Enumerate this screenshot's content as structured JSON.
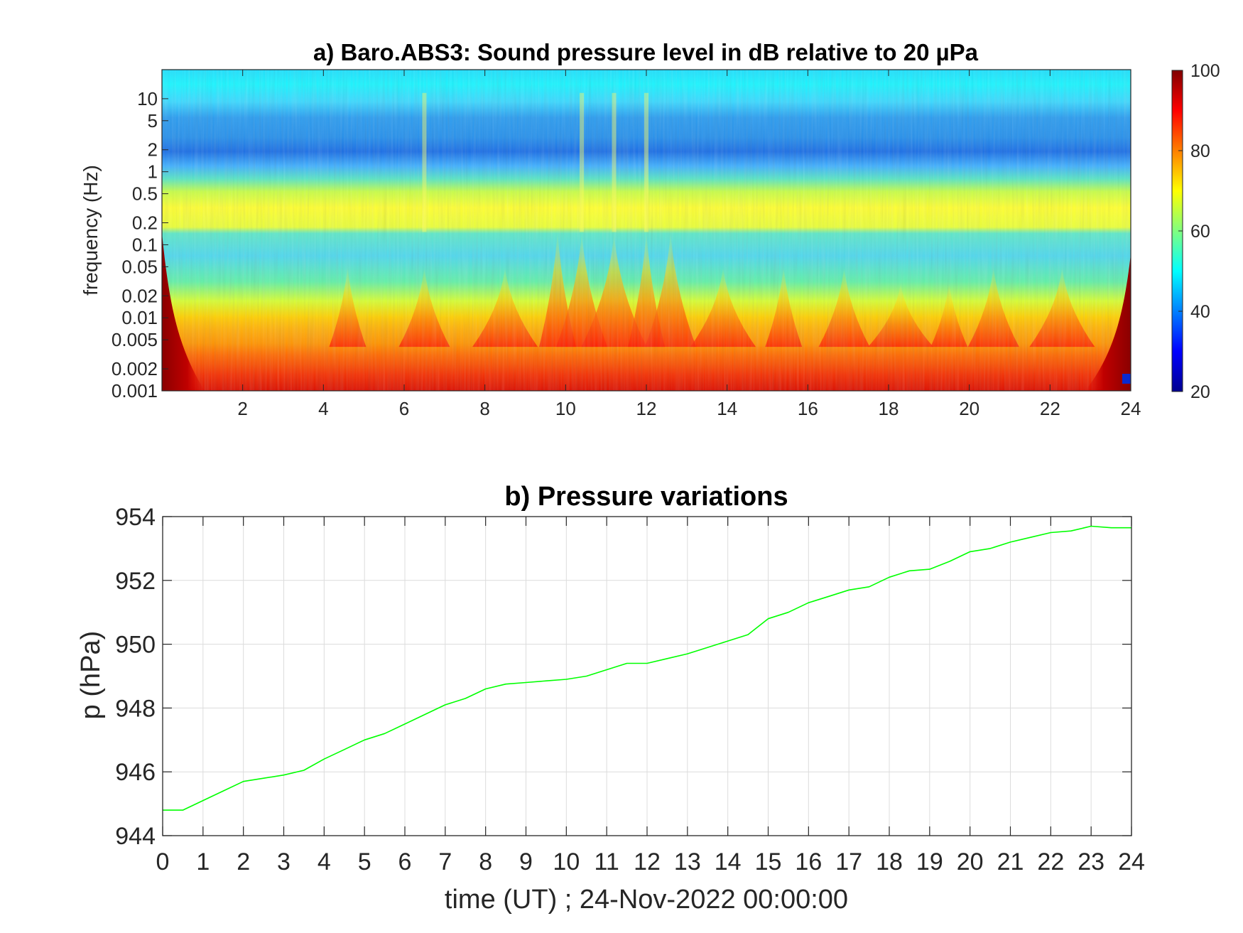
{
  "chart_data": [
    {
      "type": "heatmap",
      "title": "a) Baro.ABS3: Sound pressure level in dB relative to 20 µPa",
      "xlabel": "",
      "ylabel": "frequency (Hz)",
      "xlim": [
        0,
        24
      ],
      "ylim": [
        0.001,
        25
      ],
      "yscale": "log",
      "x_ticks": [
        2,
        4,
        6,
        8,
        10,
        12,
        14,
        16,
        18,
        20,
        22,
        24
      ],
      "x_tick_labels": [
        "2",
        "4",
        "6",
        "8",
        "10",
        "12",
        "14",
        "16",
        "18",
        "20",
        "22",
        "24"
      ],
      "y_ticks": [
        0.001,
        0.002,
        0.005,
        0.01,
        0.02,
        0.05,
        0.1,
        0.2,
        0.5,
        1,
        2,
        5,
        10
      ],
      "y_tick_labels": [
        "0.001",
        "0.002",
        "0.005",
        "0.01",
        "0.02",
        "0.05",
        "0.1",
        "0.2",
        "0.5",
        "1",
        "2",
        "5",
        "10"
      ],
      "colormap": "jet",
      "colorbar": {
        "min": 20,
        "max": 100,
        "ticks": [
          20,
          40,
          60,
          80,
          100
        ],
        "tick_labels": [
          "20",
          "40",
          "60",
          "80",
          "100"
        ]
      },
      "level_profile_db": {
        "frequency_hz": [
          0.001,
          0.002,
          0.005,
          0.01,
          0.02,
          0.05,
          0.1,
          0.15,
          0.2,
          0.5,
          1,
          2,
          5,
          10,
          25
        ],
        "level_db": [
          88,
          85,
          80,
          74,
          68,
          58,
          55,
          66,
          65,
          58,
          50,
          44,
          43,
          50,
          55
        ]
      },
      "broadband_events_hours": [
        4.6,
        6.5,
        8.5,
        9.8,
        10.4,
        11.2,
        12.0,
        12.6,
        13.9,
        15.4,
        16.9,
        18.3,
        19.5,
        20.6,
        22.3
      ],
      "grid": false
    },
    {
      "type": "line",
      "title": "b) Pressure variations",
      "xlabel": "time (UT) ; 24-Nov-2022 00:00:00",
      "ylabel": "p (hPa)",
      "xlim": [
        0,
        24
      ],
      "ylim": [
        944,
        954
      ],
      "x_ticks": [
        0,
        1,
        2,
        3,
        4,
        5,
        6,
        7,
        8,
        9,
        10,
        11,
        12,
        13,
        14,
        15,
        16,
        17,
        18,
        19,
        20,
        21,
        22,
        23,
        24
      ],
      "x_tick_labels": [
        "0",
        "1",
        "2",
        "3",
        "4",
        "5",
        "6",
        "7",
        "8",
        "9",
        "10",
        "11",
        "12",
        "13",
        "14",
        "15",
        "16",
        "17",
        "18",
        "19",
        "20",
        "21",
        "22",
        "23",
        "24"
      ],
      "y_ticks": [
        944,
        946,
        948,
        950,
        952,
        954
      ],
      "y_tick_labels": [
        "944",
        "946",
        "948",
        "950",
        "952",
        "954"
      ],
      "grid": true,
      "line_color": "#00ff00",
      "series": [
        {
          "x": [
            0,
            0.5,
            1,
            1.5,
            2,
            2.5,
            3,
            3.5,
            4,
            4.5,
            5,
            5.5,
            6,
            6.5,
            7,
            7.5,
            8,
            8.5,
            9,
            9.5,
            10,
            10.5,
            11,
            11.5,
            12,
            12.5,
            13,
            13.5,
            14,
            14.5,
            15,
            15.5,
            16,
            16.5,
            17,
            17.5,
            18,
            18.5,
            19,
            19.5,
            20,
            20.5,
            21,
            21.5,
            22,
            22.5,
            23,
            23.5,
            24
          ],
          "y": [
            944.8,
            944.8,
            945.1,
            945.4,
            945.7,
            945.8,
            945.9,
            946.05,
            946.4,
            946.7,
            947.0,
            947.2,
            947.5,
            947.8,
            948.1,
            948.3,
            948.6,
            948.75,
            948.8,
            948.85,
            948.9,
            949.0,
            949.2,
            949.4,
            949.4,
            949.55,
            949.7,
            949.9,
            950.1,
            950.3,
            950.8,
            951.0,
            951.3,
            951.5,
            951.7,
            951.8,
            952.1,
            952.3,
            952.35,
            952.6,
            952.9,
            953.0,
            953.2,
            953.35,
            953.5,
            953.55,
            953.7,
            953.65,
            953.65
          ]
        }
      ]
    }
  ]
}
